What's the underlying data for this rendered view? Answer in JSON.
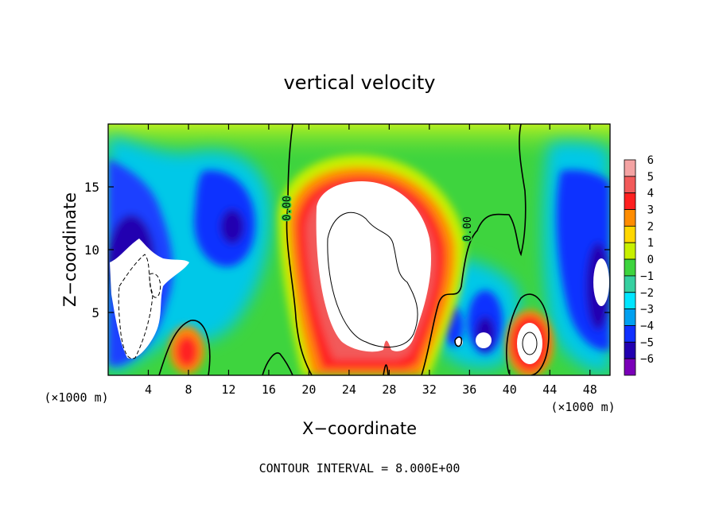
{
  "chart_data": {
    "type": "heatmap",
    "title": "vertical velocity",
    "xlabel": "X−coordinate",
    "ylabel": "Z−coordinate",
    "x_units_left": "(×1000 m)",
    "x_units_right": "(×1000 m)",
    "xlim": [
      0,
      50
    ],
    "ylim": [
      0,
      20
    ],
    "x_ticks": [
      4,
      8,
      12,
      16,
      20,
      24,
      28,
      32,
      36,
      40,
      44,
      48
    ],
    "y_ticks": [
      5,
      10,
      15
    ],
    "colorbar": {
      "levels": [
        6,
        5,
        4,
        3,
        2,
        1,
        0,
        -1,
        -2,
        -3,
        -4,
        -5,
        -6
      ],
      "level_labels": [
        "6",
        "5",
        "4",
        "3",
        "2",
        "1",
        "0",
        "−1",
        "−2",
        "−3",
        "−4",
        "−5",
        "−6"
      ],
      "colors": [
        "#f4a3a3",
        "#f25a5a",
        "#ff2020",
        "#ff8c00",
        "#ffd700",
        "#c8f000",
        "#3ed43e",
        "#36d0a0",
        "#00e5ff",
        "#00a0f0",
        "#1030ff",
        "#2200b0",
        "#7a00b8"
      ]
    },
    "contour_labels": [
      "0.00",
      "0.00"
    ],
    "contour_interval_text": "CONTOUR INTERVAL = 8.000E+00",
    "features": [
      {
        "name": "updraft core",
        "x": 25.5,
        "z": 10.5,
        "w": 7.0
      },
      {
        "name": "updraft",
        "x": 41.8,
        "z": 2.5,
        "w": 7.0
      },
      {
        "name": "updraft",
        "x": 7.8,
        "z": 2.2,
        "w": 5.0
      },
      {
        "name": "downdraft",
        "x": 2.5,
        "z": 8.0,
        "w": -7.0
      },
      {
        "name": "downdraft",
        "x": 12.5,
        "z": 11.5,
        "w": -5.0
      },
      {
        "name": "downdraft",
        "x": 48.5,
        "z": 8.0,
        "w": -6.0
      },
      {
        "name": "downdraft",
        "x": 37.0,
        "z": 3.0,
        "w": -5.0
      },
      {
        "name": "downdraft",
        "x": 39.5,
        "z": 2.5,
        "w": -6.0
      }
    ]
  }
}
